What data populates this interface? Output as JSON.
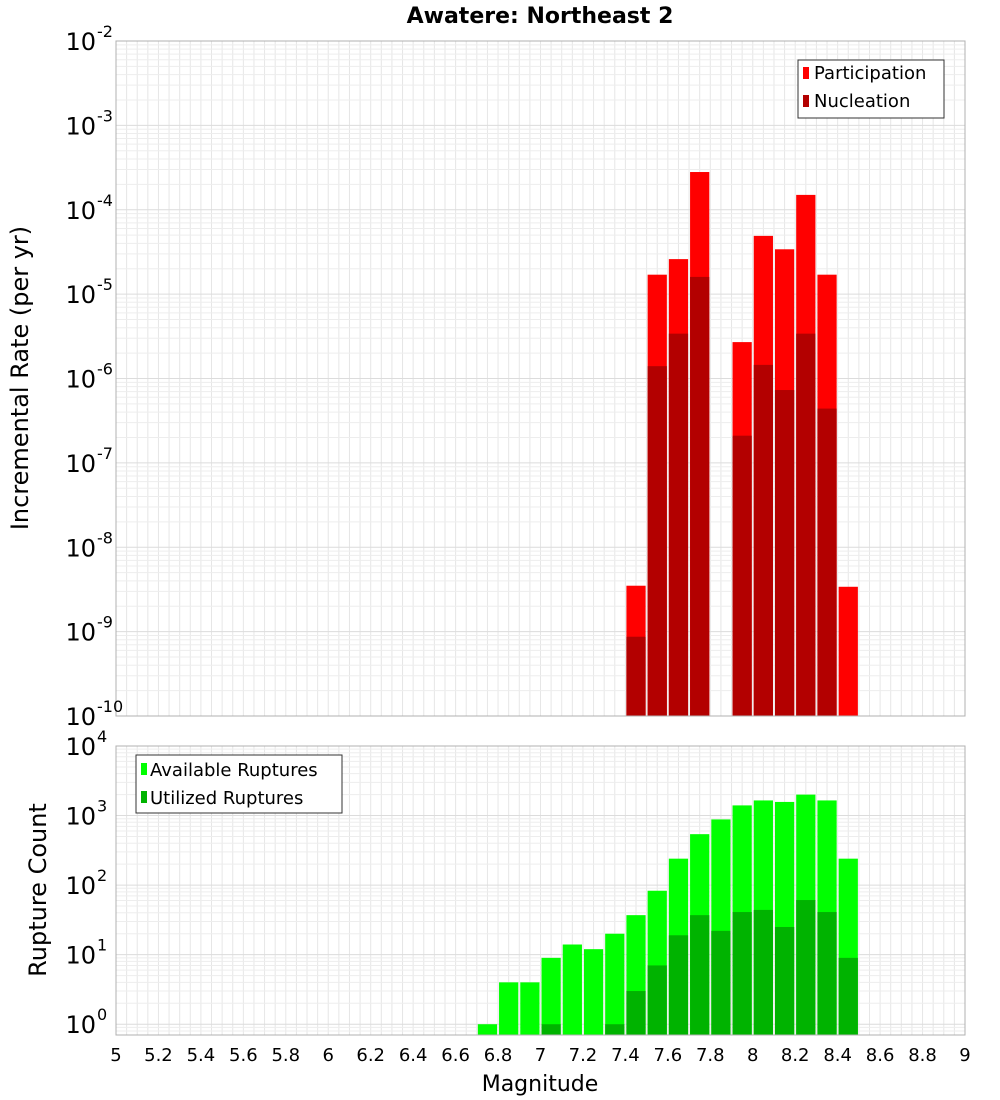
{
  "title": "Awatere: Northeast 2",
  "xlabel": "Magnitude",
  "x_ticks": [
    "5",
    "5.2",
    "5.4",
    "5.6",
    "5.8",
    "6",
    "6.2",
    "6.4",
    "6.6",
    "6.8",
    "7",
    "7.2",
    "7.4",
    "7.6",
    "7.8",
    "8",
    "8.2",
    "8.4",
    "8.6",
    "8.8",
    "9"
  ],
  "colors": {
    "participation": "#ff0000",
    "nucleation": "#b30000",
    "available": "#00ff00",
    "utilized": "#00b300",
    "grid": "#e6e6e6",
    "axis_border": "#b0b0b0"
  },
  "chart_data": [
    {
      "type": "bar",
      "ylabel": "Incremental Rate (per yr)",
      "yscale": "log",
      "ylim": [
        1e-10,
        0.01
      ],
      "xlim": [
        5,
        9
      ],
      "bin_width": 0.1,
      "y_ticks": [
        {
          "base": "10",
          "exp": "-2"
        },
        {
          "base": "10",
          "exp": "-3"
        },
        {
          "base": "10",
          "exp": "-4"
        },
        {
          "base": "10",
          "exp": "-5"
        },
        {
          "base": "10",
          "exp": "-6"
        },
        {
          "base": "10",
          "exp": "-7"
        },
        {
          "base": "10",
          "exp": "-8"
        },
        {
          "base": "10",
          "exp": "-9"
        },
        {
          "base": "10",
          "exp": "-10"
        }
      ],
      "legend_position": "top-right",
      "series": [
        {
          "name": "Participation",
          "x": [
            7.45,
            7.55,
            7.65,
            7.75,
            7.95,
            8.05,
            8.15,
            8.25,
            8.35,
            8.45
          ],
          "values": [
            3.5e-09,
            1.7e-05,
            2.6e-05,
            0.00028,
            2.7e-06,
            4.9e-05,
            3.4e-05,
            0.00015,
            1.7e-05,
            3.4e-09
          ]
        },
        {
          "name": "Nucleation",
          "x": [
            7.45,
            7.55,
            7.65,
            7.75,
            7.95,
            8.05,
            8.15,
            8.25,
            8.35
          ],
          "values": [
            8.7e-10,
            1.4e-06,
            3.4e-06,
            1.6e-05,
            2.1e-07,
            1.45e-06,
            7.3e-07,
            3.4e-06,
            4.4e-07
          ]
        }
      ]
    },
    {
      "type": "bar",
      "ylabel": "Rupture Count",
      "yscale": "log",
      "ylim": [
        0.7,
        10000
      ],
      "xlim": [
        5,
        9
      ],
      "bin_width": 0.1,
      "y_ticks": [
        {
          "base": "10",
          "exp": "4"
        },
        {
          "base": "10",
          "exp": "3"
        },
        {
          "base": "10",
          "exp": "2"
        },
        {
          "base": "10",
          "exp": "1"
        },
        {
          "base": "10",
          "exp": "0"
        }
      ],
      "legend_position": "top-left",
      "series": [
        {
          "name": "Available Ruptures",
          "x": [
            6.75,
            6.85,
            6.95,
            7.05,
            7.15,
            7.25,
            7.35,
            7.45,
            7.55,
            7.65,
            7.75,
            7.85,
            7.95,
            8.05,
            8.15,
            8.25,
            8.35,
            8.45
          ],
          "values": [
            1,
            4,
            4,
            9,
            14,
            12,
            20,
            37,
            83,
            240,
            540,
            880,
            1400,
            1650,
            1570,
            2000,
            1650,
            240
          ]
        },
        {
          "name": "Utilized Ruptures",
          "x": [
            7.05,
            7.35,
            7.45,
            7.55,
            7.65,
            7.75,
            7.85,
            7.95,
            8.05,
            8.15,
            8.25,
            8.35,
            8.45
          ],
          "values": [
            1,
            1,
            3,
            7,
            19,
            37,
            22,
            41,
            44,
            25,
            61,
            41,
            9
          ]
        }
      ]
    }
  ]
}
